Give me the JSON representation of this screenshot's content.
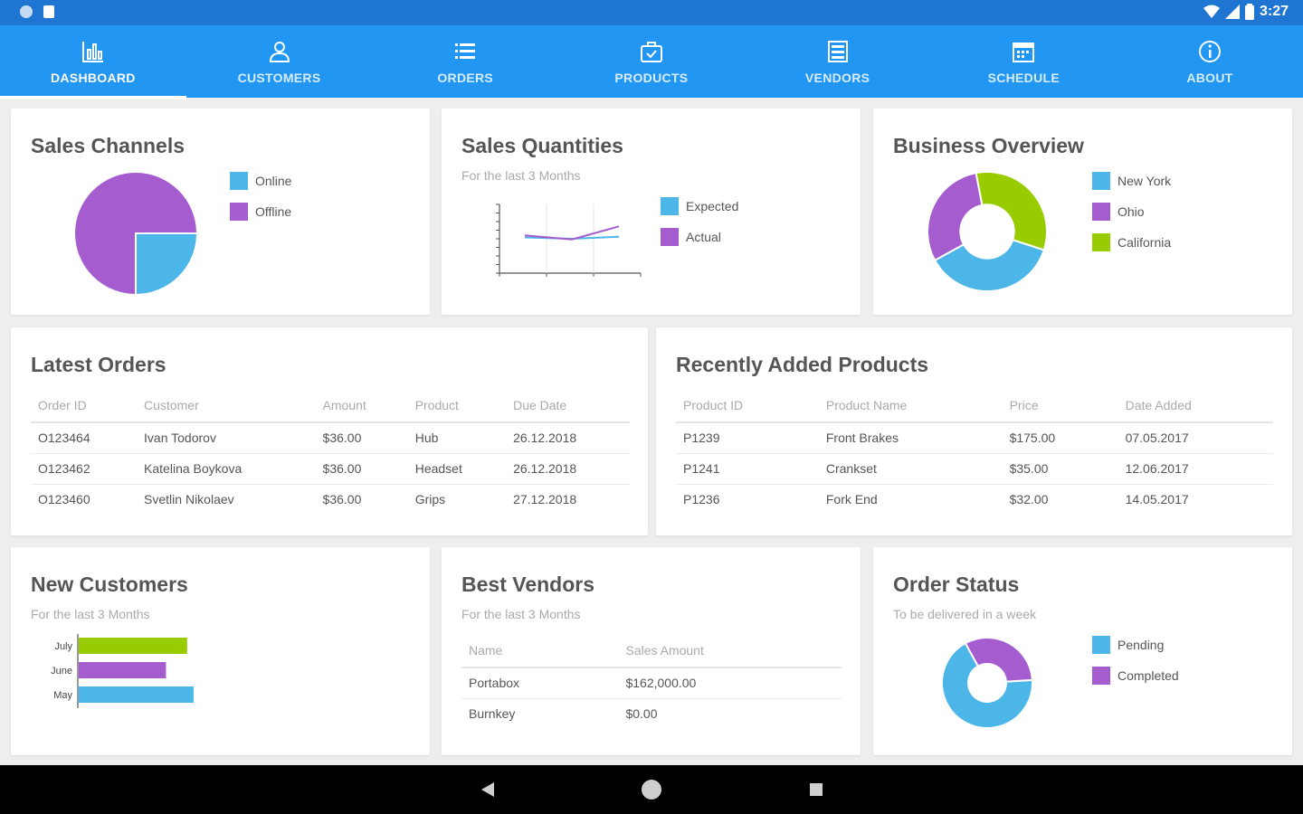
{
  "status_bar": {
    "time": "3:27"
  },
  "nav": {
    "tabs": [
      {
        "label": "DASHBOARD",
        "icon": "bar-chart-icon",
        "active": true
      },
      {
        "label": "CUSTOMERS",
        "icon": "customers-icon",
        "active": false
      },
      {
        "label": "ORDERS",
        "icon": "orders-list-icon",
        "active": false
      },
      {
        "label": "PRODUCTS",
        "icon": "products-box-icon",
        "active": false
      },
      {
        "label": "VENDORS",
        "icon": "vendors-icon",
        "active": false
      },
      {
        "label": "SCHEDULE",
        "icon": "calendar-icon",
        "active": false
      },
      {
        "label": "ABOUT",
        "icon": "info-icon",
        "active": false
      }
    ]
  },
  "colors": {
    "blue": "#4db6e8",
    "purple": "#a45ccf",
    "green": "#99cc00",
    "primary": "#2196f3"
  },
  "sales_channels": {
    "title": "Sales Channels",
    "legend": [
      "Online",
      "Offline"
    ],
    "chart_data": {
      "type": "pie",
      "categories": [
        "Online",
        "Offline"
      ],
      "values": [
        25,
        75
      ]
    }
  },
  "sales_quantities": {
    "title": "Sales Quantities",
    "subtitle": "For the last 3 Months",
    "legend": [
      "Expected",
      "Actual"
    ],
    "chart_data": {
      "type": "line",
      "x": [
        1,
        2,
        3
      ],
      "series": [
        {
          "name": "Expected",
          "values": [
            52,
            50,
            53
          ]
        },
        {
          "name": "Actual",
          "values": [
            55,
            49,
            68
          ]
        }
      ],
      "ylim": [
        0,
        100
      ]
    }
  },
  "business_overview": {
    "title": "Business Overview",
    "legend": [
      "New York",
      "Ohio",
      "California"
    ],
    "chart_data": {
      "type": "pie",
      "categories": [
        "New York",
        "Ohio",
        "California"
      ],
      "values": [
        37,
        30,
        33
      ]
    }
  },
  "latest_orders": {
    "title": "Latest Orders",
    "columns": [
      "Order ID",
      "Customer",
      "Amount",
      "Product",
      "Due Date"
    ],
    "rows": [
      [
        "O123464",
        "Ivan Todorov",
        "$36.00",
        "Hub",
        "26.12.2018"
      ],
      [
        "O123462",
        "Katelina Boykova",
        "$36.00",
        "Headset",
        "26.12.2018"
      ],
      [
        "O123460",
        "Svetlin Nikolaev",
        "$36.00",
        "Grips",
        "27.12.2018"
      ]
    ]
  },
  "recent_products": {
    "title": "Recently Added Products",
    "columns": [
      "Product ID",
      "Product Name",
      "Price",
      "Date Added"
    ],
    "rows": [
      [
        "P1239",
        "Front Brakes",
        "$175.00",
        "07.05.2017"
      ],
      [
        "P1241",
        "Crankset",
        "$35.00",
        "12.06.2017"
      ],
      [
        "P1236",
        "Fork End",
        "$32.00",
        "14.05.2017"
      ]
    ]
  },
  "new_customers": {
    "title": "New Customers",
    "subtitle": "For the last 3 Months",
    "chart_data": {
      "type": "bar",
      "categories": [
        "July",
        "June",
        "May"
      ],
      "values": [
        118,
        95,
        125
      ]
    }
  },
  "best_vendors": {
    "title": "Best Vendors",
    "subtitle": "For the last 3 Months",
    "columns": [
      "Name",
      "Sales Amount"
    ],
    "rows": [
      [
        "Portabox",
        "$162,000.00"
      ],
      [
        "Burnkey",
        "$0.00"
      ]
    ]
  },
  "order_status": {
    "title": "Order Status",
    "subtitle": "To be delivered in a week",
    "legend": [
      "Pending",
      "Completed"
    ],
    "chart_data": {
      "type": "pie",
      "categories": [
        "Pending",
        "Completed"
      ],
      "values": [
        68,
        32
      ]
    }
  }
}
